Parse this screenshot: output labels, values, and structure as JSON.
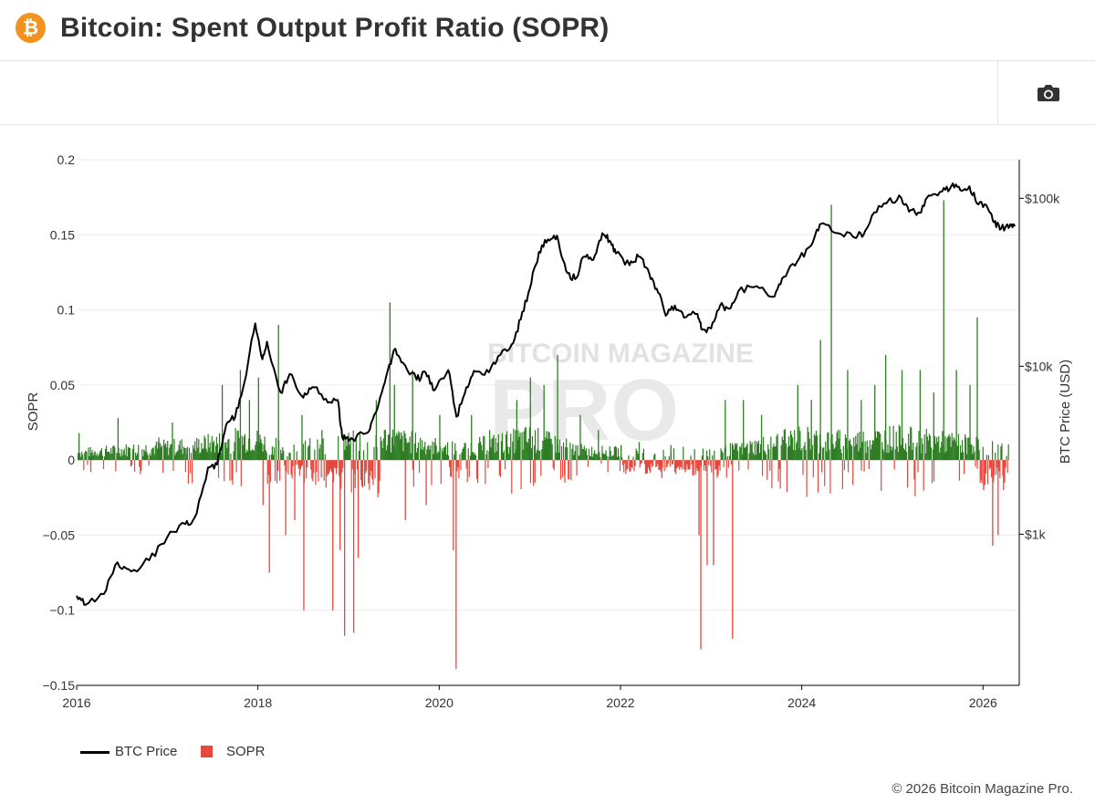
{
  "header": {
    "title": "Bitcoin: Spent Output Profit Ratio (SOPR)",
    "logo_icon": "bitcoin-icon",
    "logo_color": "#f2931f"
  },
  "toolbar": {
    "camera_icon": "camera-icon"
  },
  "chart_data": {
    "type": "line+bar",
    "title": "Bitcoin: Spent Output Profit Ratio (SOPR)",
    "xlabel": "",
    "y_left_label": "SOPR",
    "y_right_label": "BTC Price (USD)",
    "y_right_scale": "log",
    "xlim": [
      2016.0,
      2026.4
    ],
    "ylim_left": [
      -0.15,
      0.2
    ],
    "ylim_right_log10": [
      2.1,
      5.23
    ],
    "x_ticks": [
      "2016",
      "2018",
      "2020",
      "2022",
      "2024",
      "2026"
    ],
    "y_left_ticks": [
      "0.2",
      "0.15",
      "0.1",
      "0.05",
      "0",
      "−0.05",
      "−0.1",
      "−0.15"
    ],
    "y_right_ticks": [
      "$100k",
      "$10k",
      "$1k"
    ],
    "colors": {
      "price": "#000000",
      "sopr_positive": "#2e7d23",
      "sopr_negative": "#e8473c"
    },
    "series": [
      {
        "name": "BTC Price",
        "kind": "line",
        "points": [
          [
            2016.0,
            430
          ],
          [
            2016.1,
            380
          ],
          [
            2016.3,
            440
          ],
          [
            2016.45,
            680
          ],
          [
            2016.6,
            600
          ],
          [
            2016.8,
            700
          ],
          [
            2017.0,
            960
          ],
          [
            2017.2,
            1150
          ],
          [
            2017.3,
            1250
          ],
          [
            2017.45,
            2500
          ],
          [
            2017.55,
            2600
          ],
          [
            2017.65,
            4500
          ],
          [
            2017.75,
            5000
          ],
          [
            2017.85,
            8000
          ],
          [
            2017.97,
            18000
          ],
          [
            2018.05,
            11000
          ],
          [
            2018.1,
            14000
          ],
          [
            2018.25,
            7000
          ],
          [
            2018.35,
            9000
          ],
          [
            2018.5,
            6500
          ],
          [
            2018.6,
            7500
          ],
          [
            2018.75,
            6400
          ],
          [
            2018.88,
            6300
          ],
          [
            2018.93,
            3800
          ],
          [
            2019.0,
            3600
          ],
          [
            2019.2,
            4000
          ],
          [
            2019.3,
            5300
          ],
          [
            2019.4,
            8000
          ],
          [
            2019.5,
            12500
          ],
          [
            2019.6,
            10500
          ],
          [
            2019.75,
            8300
          ],
          [
            2019.85,
            9200
          ],
          [
            2019.95,
            7200
          ],
          [
            2020.1,
            9500
          ],
          [
            2020.19,
            5000
          ],
          [
            2020.3,
            7500
          ],
          [
            2020.4,
            9300
          ],
          [
            2020.55,
            9200
          ],
          [
            2020.65,
            11500
          ],
          [
            2020.8,
            13500
          ],
          [
            2020.9,
            19000
          ],
          [
            2021.0,
            29000
          ],
          [
            2021.1,
            48000
          ],
          [
            2021.2,
            57000
          ],
          [
            2021.3,
            60000
          ],
          [
            2021.4,
            37000
          ],
          [
            2021.5,
            33000
          ],
          [
            2021.6,
            45000
          ],
          [
            2021.7,
            43000
          ],
          [
            2021.8,
            62000
          ],
          [
            2021.88,
            56000
          ],
          [
            2021.95,
            47000
          ],
          [
            2022.1,
            40000
          ],
          [
            2022.2,
            45000
          ],
          [
            2022.3,
            38000
          ],
          [
            2022.4,
            29000
          ],
          [
            2022.5,
            20000
          ],
          [
            2022.6,
            23000
          ],
          [
            2022.7,
            19500
          ],
          [
            2022.85,
            20500
          ],
          [
            2022.9,
            16500
          ],
          [
            2023.0,
            16800
          ],
          [
            2023.1,
            23000
          ],
          [
            2023.2,
            22000
          ],
          [
            2023.3,
            28000
          ],
          [
            2023.5,
            30000
          ],
          [
            2023.7,
            26000
          ],
          [
            2023.8,
            34000
          ],
          [
            2023.95,
            42000
          ],
          [
            2024.1,
            52000
          ],
          [
            2024.2,
            70000
          ],
          [
            2024.4,
            62000
          ],
          [
            2024.6,
            58000
          ],
          [
            2024.7,
            64000
          ],
          [
            2024.85,
            90000
          ],
          [
            2024.95,
            96000
          ],
          [
            2025.1,
            100000
          ],
          [
            2025.2,
            85000
          ],
          [
            2025.3,
            82000
          ],
          [
            2025.4,
            104000
          ],
          [
            2025.55,
            110000
          ],
          [
            2025.65,
            118000
          ],
          [
            2025.75,
            112000
          ],
          [
            2025.85,
            118000
          ],
          [
            2025.95,
            92000
          ],
          [
            2026.05,
            88000
          ],
          [
            2026.12,
            72000
          ],
          [
            2026.2,
            66000
          ],
          [
            2026.3,
            70000
          ],
          [
            2026.35,
            68000
          ]
        ]
      },
      {
        "name": "SOPR",
        "kind": "bar",
        "spikes": [
          [
            2016.02,
            0.018
          ],
          [
            2016.15,
            -0.008
          ],
          [
            2016.45,
            0.028
          ],
          [
            2016.58,
            0.008
          ],
          [
            2016.9,
            0.015
          ],
          [
            2017.05,
            0.025
          ],
          [
            2017.2,
            0.008
          ],
          [
            2017.5,
            0.01
          ],
          [
            2017.6,
            0.05
          ],
          [
            2017.8,
            0.06
          ],
          [
            2017.9,
            0.04
          ],
          [
            2018.0,
            0.055
          ],
          [
            2018.05,
            -0.03
          ],
          [
            2018.12,
            -0.075
          ],
          [
            2018.22,
            0.09
          ],
          [
            2018.3,
            -0.05
          ],
          [
            2018.4,
            -0.04
          ],
          [
            2018.48,
            0.03
          ],
          [
            2018.5,
            -0.1
          ],
          [
            2018.7,
            0.02
          ],
          [
            2018.82,
            -0.1
          ],
          [
            2018.9,
            -0.06
          ],
          [
            2018.95,
            -0.117
          ],
          [
            2019.05,
            -0.115
          ],
          [
            2019.1,
            -0.065
          ],
          [
            2019.3,
            0.04
          ],
          [
            2019.45,
            0.105
          ],
          [
            2019.5,
            0.05
          ],
          [
            2019.62,
            -0.04
          ],
          [
            2019.7,
            0.06
          ],
          [
            2019.85,
            -0.03
          ],
          [
            2020.0,
            0.03
          ],
          [
            2020.15,
            -0.06
          ],
          [
            2020.18,
            -0.139
          ],
          [
            2020.35,
            0.03
          ],
          [
            2020.55,
            0.02
          ],
          [
            2020.85,
            0.04
          ],
          [
            2021.0,
            0.055
          ],
          [
            2021.05,
            -0.015
          ],
          [
            2021.15,
            0.05
          ],
          [
            2021.3,
            0.07
          ],
          [
            2021.38,
            -0.015
          ],
          [
            2021.55,
            0.03
          ],
          [
            2021.75,
            0.02
          ],
          [
            2022.0,
            0.01
          ],
          [
            2022.2,
            0.012
          ],
          [
            2022.45,
            -0.012
          ],
          [
            2022.55,
            0.01
          ],
          [
            2022.86,
            -0.05
          ],
          [
            2022.88,
            -0.126
          ],
          [
            2022.95,
            -0.07
          ],
          [
            2023.02,
            -0.07
          ],
          [
            2023.15,
            0.04
          ],
          [
            2023.23,
            -0.119
          ],
          [
            2023.35,
            0.04
          ],
          [
            2023.55,
            0.03
          ],
          [
            2023.8,
            0.02
          ],
          [
            2023.95,
            0.05
          ],
          [
            2024.1,
            0.04
          ],
          [
            2024.2,
            0.08
          ],
          [
            2024.32,
            0.17
          ],
          [
            2024.5,
            0.06
          ],
          [
            2024.65,
            0.04
          ],
          [
            2024.8,
            0.05
          ],
          [
            2024.92,
            0.07
          ],
          [
            2025.1,
            0.06
          ],
          [
            2025.3,
            0.06
          ],
          [
            2025.45,
            0.045
          ],
          [
            2025.56,
            0.173
          ],
          [
            2025.7,
            0.06
          ],
          [
            2025.85,
            0.05
          ],
          [
            2025.93,
            0.095
          ],
          [
            2026.0,
            -0.02
          ],
          [
            2026.1,
            -0.057
          ],
          [
            2026.16,
            -0.05
          ],
          [
            2026.22,
            -0.02
          ]
        ],
        "range_note": "daily values mostly between -0.03 and 0.03"
      }
    ],
    "watermark": "BITCOIN MAGAZINE PRO",
    "legend_position": "bottom-left"
  },
  "legend": {
    "price_label": "BTC Price",
    "sopr_label": "SOPR"
  },
  "footer": {
    "copyright": "© 2026 Bitcoin Magazine Pro."
  }
}
